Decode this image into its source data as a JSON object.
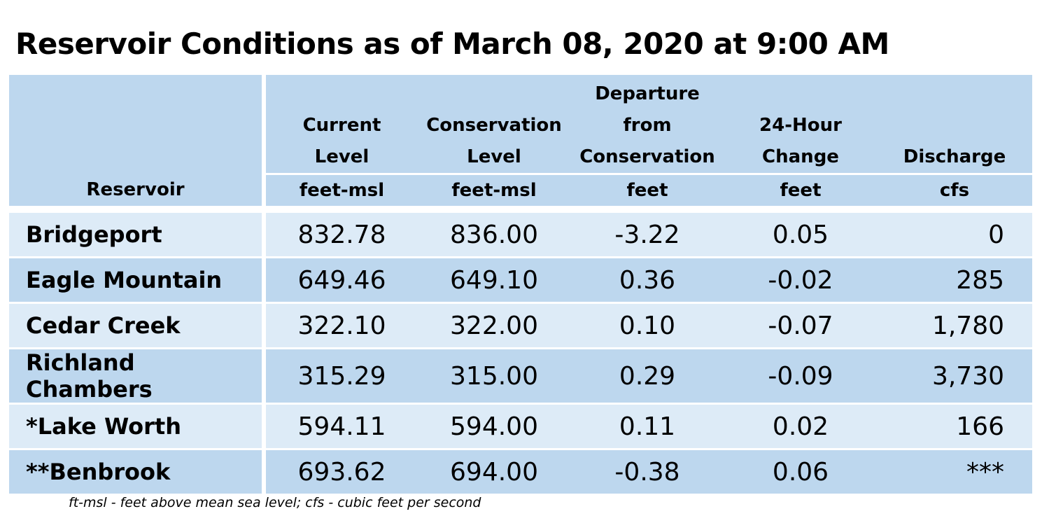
{
  "title": "Reservoir Conditions as of March 08, 2020 at 9:00 AM",
  "headers": [
    {
      "lines": [
        "",
        "",
        ""
      ],
      "unit": "Reservoir"
    },
    {
      "lines": [
        "",
        "Current",
        "Level"
      ],
      "unit": "feet-msl"
    },
    {
      "lines": [
        "",
        "Conservation",
        "Level"
      ],
      "unit": "feet-msl"
    },
    {
      "lines": [
        "Departure",
        "from",
        "Conservation"
      ],
      "unit": "feet"
    },
    {
      "lines": [
        "",
        "24-Hour",
        "Change"
      ],
      "unit": "feet"
    },
    {
      "lines": [
        "",
        "",
        "Discharge"
      ],
      "unit": "cfs"
    }
  ],
  "rows": [
    {
      "name": "Bridgeport",
      "current": "832.78",
      "conservation": "836.00",
      "departure": "-3.22",
      "change": "0.05",
      "discharge": "0"
    },
    {
      "name": "Eagle Mountain",
      "current": "649.46",
      "conservation": "649.10",
      "departure": "0.36",
      "change": "-0.02",
      "discharge": "285"
    },
    {
      "name": "Cedar Creek",
      "current": "322.10",
      "conservation": "322.00",
      "departure": "0.10",
      "change": "-0.07",
      "discharge": "1,780"
    },
    {
      "name": "Richland Chambers",
      "current": "315.29",
      "conservation": "315.00",
      "departure": "0.29",
      "change": "-0.09",
      "discharge": "3,730"
    },
    {
      "name": "*Lake Worth",
      "current": "594.11",
      "conservation": "594.00",
      "departure": "0.11",
      "change": "0.02",
      "discharge": "166"
    },
    {
      "name": "**Benbrook",
      "current": "693.62",
      "conservation": "694.00",
      "departure": "-0.38",
      "change": "0.06",
      "discharge": "***"
    }
  ],
  "footnote": "ft-msl - feet above mean sea level; cfs - cubic feet per second",
  "colors": {
    "header": "#bdd7ee",
    "row_light": "#ddebf7",
    "row_dark": "#bdd7ee"
  }
}
